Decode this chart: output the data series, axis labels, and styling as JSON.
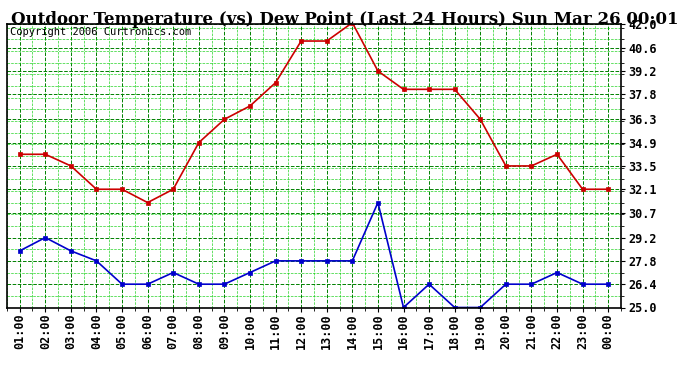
{
  "title": "Outdoor Temperature (vs) Dew Point (Last 24 Hours) Sun Mar 26 00:01",
  "copyright": "Copyright 2006 Curtronics.com",
  "x_labels": [
    "01:00",
    "02:00",
    "03:00",
    "04:00",
    "05:00",
    "06:00",
    "07:00",
    "08:00",
    "09:00",
    "10:00",
    "11:00",
    "12:00",
    "13:00",
    "14:00",
    "15:00",
    "16:00",
    "17:00",
    "18:00",
    "19:00",
    "20:00",
    "21:00",
    "22:00",
    "23:00",
    "00:00"
  ],
  "temp_data": [
    34.2,
    34.2,
    33.5,
    32.1,
    32.1,
    31.3,
    32.1,
    34.9,
    36.3,
    37.1,
    38.5,
    41.0,
    41.0,
    42.1,
    39.2,
    38.1,
    38.1,
    38.1,
    36.3,
    33.5,
    33.5,
    34.2,
    32.1,
    32.1
  ],
  "dew_data": [
    28.4,
    29.2,
    28.4,
    27.8,
    26.4,
    26.4,
    27.1,
    26.4,
    26.4,
    27.1,
    27.8,
    27.8,
    27.8,
    27.8,
    31.3,
    25.0,
    26.4,
    25.0,
    25.0,
    26.4,
    26.4,
    27.1,
    26.4,
    26.4
  ],
  "temp_color": "#cc0000",
  "dew_color": "#0000cc",
  "bg_color": "#ffffff",
  "plot_bg_color": "#ffffff",
  "grid_color_major": "#008000",
  "grid_color_minor": "#00cc00",
  "ylim": [
    25.0,
    42.0
  ],
  "yticks": [
    25.0,
    26.4,
    27.8,
    29.2,
    30.7,
    32.1,
    33.5,
    34.9,
    36.3,
    37.8,
    39.2,
    40.6,
    42.0
  ],
  "title_fontsize": 12,
  "copyright_fontsize": 7.5,
  "tick_fontsize": 8.5,
  "marker_size": 3.0,
  "line_width": 1.2
}
